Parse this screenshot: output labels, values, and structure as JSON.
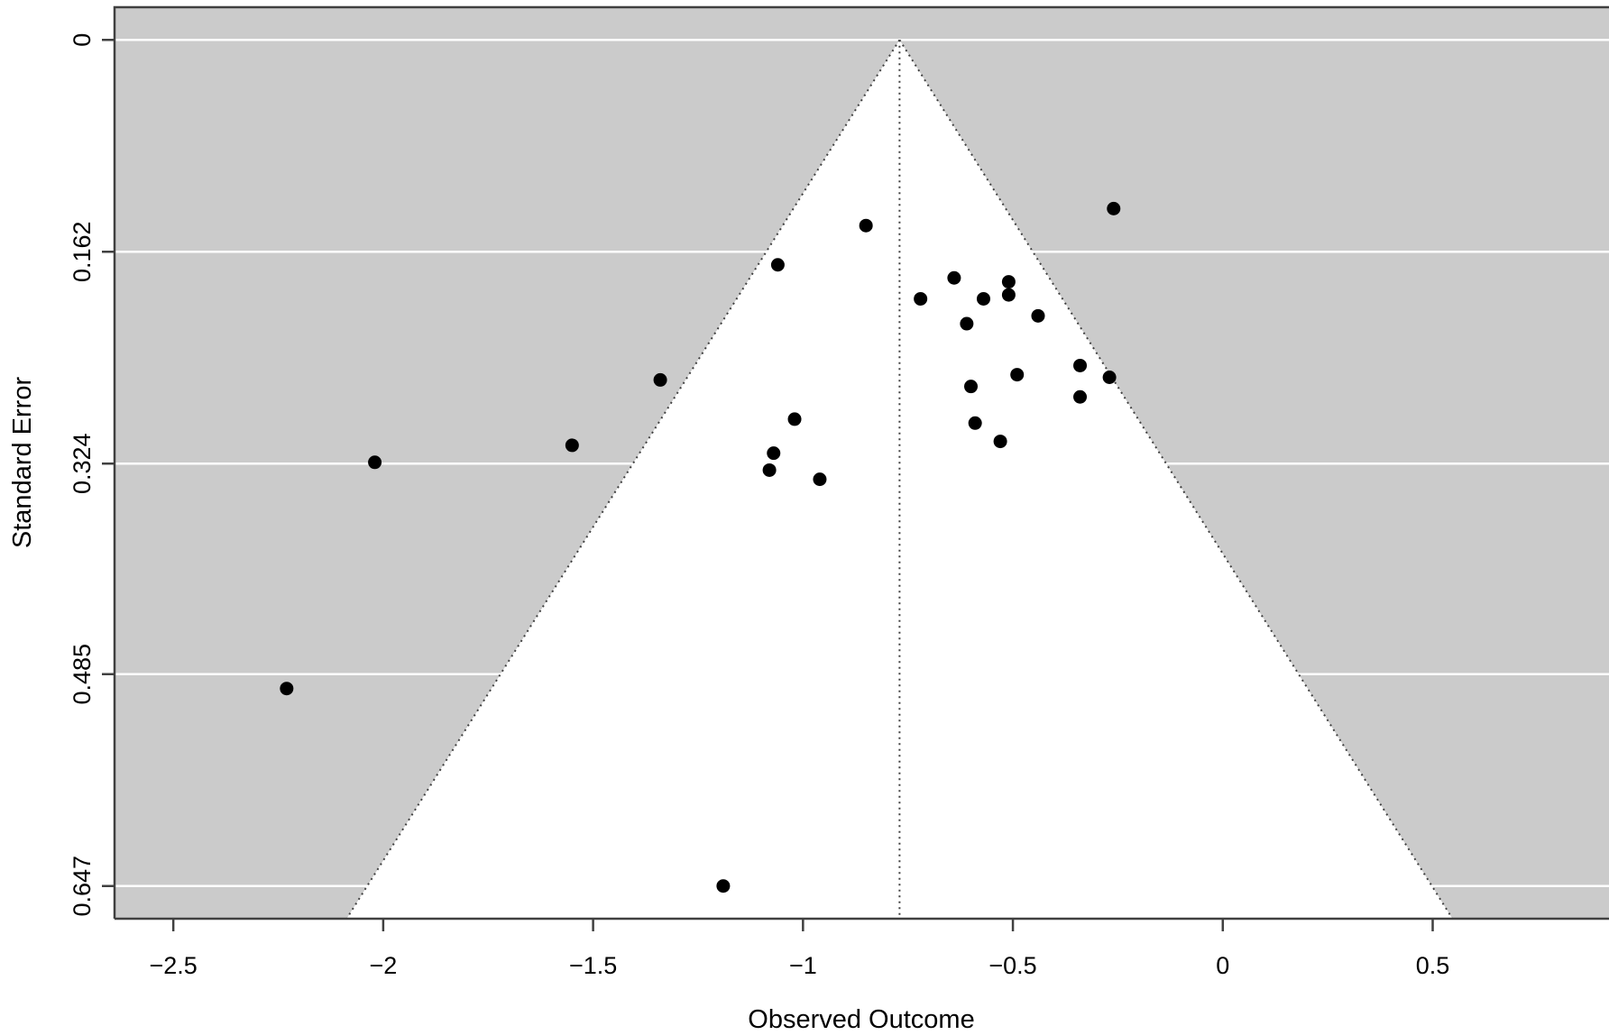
{
  "figure": {
    "kind": "meta-analysis funnel plot",
    "xlabel": "Observed Outcome",
    "ylabel": "Standard Error"
  },
  "chart_data": {
    "type": "scatter",
    "subtype": "funnel-plot",
    "title": "",
    "xlabel": "Observed Outcome",
    "ylabel": "Standard Error",
    "xlim": [
      -2.64,
      0.92
    ],
    "se_lim": [
      -0.025,
      0.672
    ],
    "x_ticks": {
      "values": [
        -2.5,
        -2,
        -1.5,
        -1,
        -0.5,
        0,
        0.5
      ],
      "labels": [
        "−2.5",
        "−2",
        "−1.5",
        "−1",
        "−0.5",
        "0",
        "0.5"
      ]
    },
    "y_ticks": {
      "values": [
        0,
        0.162,
        0.324,
        0.485,
        0.647
      ],
      "labels": [
        "0",
        "0.162",
        "0.324",
        "0.485",
        "0.647"
      ]
    },
    "grid": {
      "horizontal": true,
      "vertical": false,
      "color": "#ffffff"
    },
    "legend": "none",
    "funnel": {
      "center_estimate": -0.77,
      "z_multiplier": 1.96,
      "region_fill": "#ffffff",
      "outer_fill": "#cbcbcb",
      "border_style": "dotted",
      "border_color": "#404040"
    },
    "points": [
      [
        -0.85,
        0.142
      ],
      [
        -0.26,
        0.129
      ],
      [
        -1.06,
        0.172
      ],
      [
        -0.64,
        0.182
      ],
      [
        -0.51,
        0.185
      ],
      [
        -0.51,
        0.195
      ],
      [
        -0.72,
        0.198
      ],
      [
        -0.57,
        0.198
      ],
      [
        -0.44,
        0.211
      ],
      [
        -0.61,
        0.217
      ],
      [
        -1.34,
        0.26
      ],
      [
        -0.49,
        0.256
      ],
      [
        -0.34,
        0.249
      ],
      [
        -0.27,
        0.258
      ],
      [
        -0.34,
        0.273
      ],
      [
        -0.6,
        0.265
      ],
      [
        -1.02,
        0.29
      ],
      [
        -0.59,
        0.293
      ],
      [
        -0.53,
        0.307
      ],
      [
        -1.07,
        0.316
      ],
      [
        -1.08,
        0.329
      ],
      [
        -0.96,
        0.336
      ],
      [
        -2.02,
        0.323
      ],
      [
        -1.55,
        0.31
      ],
      [
        -2.23,
        0.496
      ],
      [
        -1.19,
        0.647
      ]
    ],
    "point_color": "#000000",
    "point_radius_px": 7.5,
    "axis_color": "#404040",
    "text_color": "#000000"
  }
}
